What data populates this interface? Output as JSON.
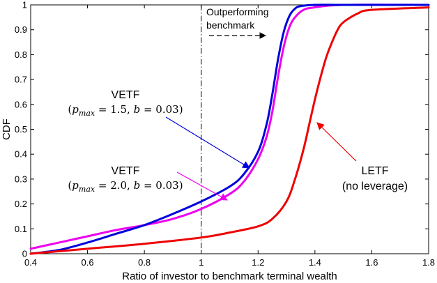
{
  "chart_data": {
    "type": "line",
    "xlabel": "Ratio of investor to benchmark terminal wealth",
    "ylabel": "CDF",
    "xlim": [
      0.4,
      1.8
    ],
    "ylim": [
      0,
      1
    ],
    "xticks": [
      "0.4",
      "0.6",
      "0.8",
      "1",
      "1.2",
      "1.4",
      "1.6",
      "1.8"
    ],
    "yticks": [
      "0",
      "0.1",
      "0.2",
      "0.3",
      "0.4",
      "0.5",
      "0.6",
      "0.7",
      "0.8",
      "0.9",
      "1"
    ],
    "grid": false,
    "series": [
      {
        "name": "VETF (p_max = 1.5, b = 0.03)",
        "color": "#0000dd",
        "x": [
          0.4,
          0.5,
          0.6,
          0.7,
          0.8,
          0.9,
          1.0,
          1.1,
          1.15,
          1.2,
          1.23,
          1.25,
          1.27,
          1.29,
          1.31,
          1.33,
          1.35,
          1.4,
          1.5,
          1.8
        ],
        "y": [
          0.0,
          0.015,
          0.045,
          0.08,
          0.115,
          0.16,
          0.21,
          0.27,
          0.32,
          0.41,
          0.52,
          0.64,
          0.78,
          0.89,
          0.955,
          0.985,
          0.995,
          1.0,
          1.0,
          1.0
        ]
      },
      {
        "name": "VETF (p_max = 2.0, b = 0.03)",
        "color": "#ee00ee",
        "x": [
          0.4,
          0.5,
          0.6,
          0.7,
          0.8,
          0.9,
          1.0,
          1.1,
          1.15,
          1.2,
          1.23,
          1.25,
          1.27,
          1.29,
          1.31,
          1.33,
          1.36,
          1.4,
          1.5,
          1.8
        ],
        "y": [
          0.02,
          0.045,
          0.07,
          0.095,
          0.115,
          0.14,
          0.18,
          0.24,
          0.29,
          0.38,
          0.47,
          0.57,
          0.71,
          0.83,
          0.91,
          0.95,
          0.98,
          0.99,
          1.0,
          1.0
        ]
      },
      {
        "name": "LETF (no leverage)",
        "color": "#ee0000",
        "x": [
          0.4,
          0.6,
          0.8,
          1.0,
          1.1,
          1.2,
          1.25,
          1.3,
          1.33,
          1.36,
          1.38,
          1.4,
          1.42,
          1.44,
          1.46,
          1.48,
          1.5,
          1.55,
          1.6,
          1.8
        ],
        "y": [
          0.0,
          0.02,
          0.04,
          0.065,
          0.085,
          0.11,
          0.14,
          0.21,
          0.3,
          0.42,
          0.52,
          0.62,
          0.71,
          0.79,
          0.85,
          0.9,
          0.93,
          0.965,
          0.98,
          0.99
        ]
      }
    ],
    "vline": {
      "x": 1.0,
      "style": "dash-dot"
    },
    "annotations": {
      "outperforming_line1": "Outperforming",
      "outperforming_line2": "benchmark",
      "vetf1_title": "VETF",
      "vetf1_params": "(p_max = 1.5, b = 0.03)",
      "vetf2_title": "VETF",
      "vetf2_params": "(p_max = 2.0, b = 0.03)",
      "letf_title": "LETF",
      "letf_sub": "(no leverage)"
    }
  }
}
